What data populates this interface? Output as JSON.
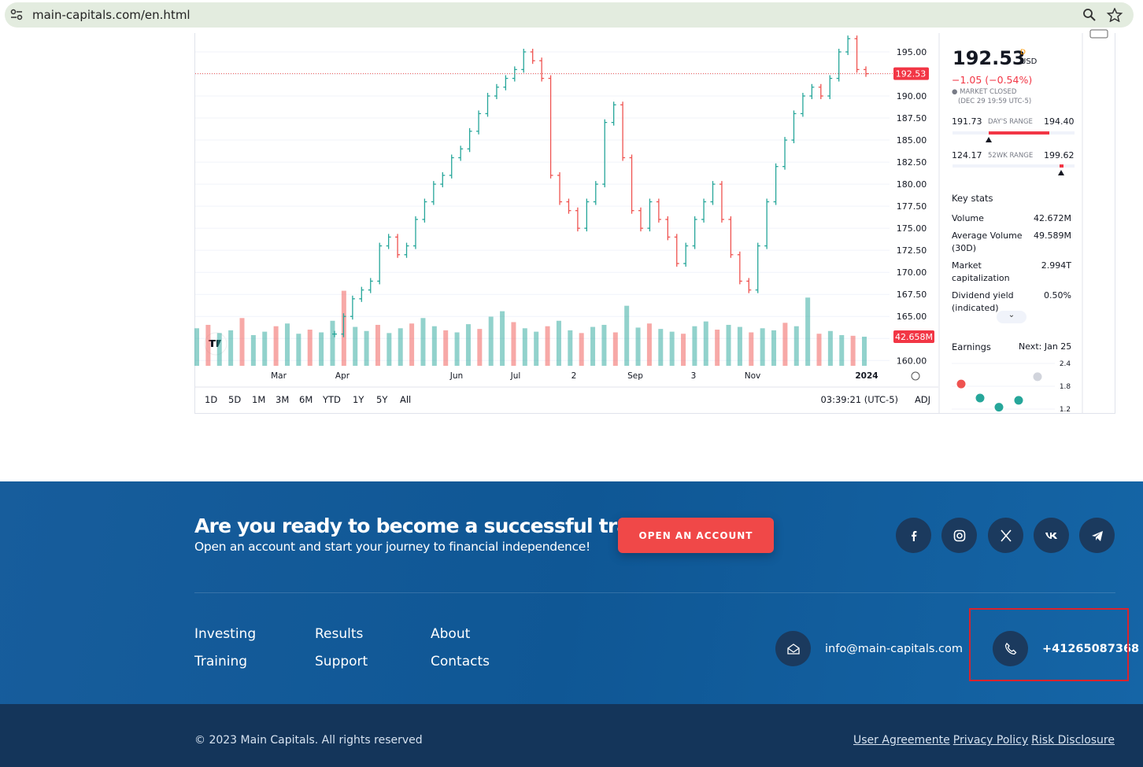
{
  "browser": {
    "url": "main-capitals.com/en.html"
  },
  "chart": {
    "type": "bar",
    "ylim": [
      159.4,
      197.05
    ],
    "yticks": [
      {
        "value": 160,
        "label": "160.00"
      },
      {
        "value": 162.5,
        "label": "162.50"
      },
      {
        "value": 165,
        "label": "165.00"
      },
      {
        "value": 167.5,
        "label": "167.50"
      },
      {
        "value": 170,
        "label": "170.00"
      },
      {
        "value": 172.5,
        "label": "172.50"
      },
      {
        "value": 175,
        "label": "175.00"
      },
      {
        "value": 177.5,
        "label": "177.50"
      },
      {
        "value": 180,
        "label": "180.00"
      },
      {
        "value": 182.5,
        "label": "182.50"
      },
      {
        "value": 185,
        "label": "185.00"
      },
      {
        "value": 187.5,
        "label": "187.50"
      },
      {
        "value": 190,
        "label": "190.00"
      },
      {
        "value": 192.5,
        "label": "192.50"
      },
      {
        "value": 195,
        "label": "195.00"
      }
    ],
    "x_labels": [
      "Mar",
      "Apr",
      "Jun",
      "Jul",
      "2",
      "Sep",
      "3",
      "Nov",
      "2024"
    ],
    "values": [
      163,
      165,
      167,
      168,
      169,
      173,
      174,
      172,
      173,
      176,
      178,
      180,
      181,
      183,
      184,
      186,
      188,
      190,
      191,
      192,
      193,
      195,
      194,
      192,
      181,
      178,
      177,
      175,
      178,
      180,
      187,
      189,
      183,
      177,
      175,
      178,
      176,
      174,
      171,
      173,
      176,
      178,
      180,
      176,
      172,
      169,
      168,
      173,
      178,
      182,
      185,
      188,
      190,
      191,
      190,
      192,
      195,
      196.5,
      193,
      192.53
    ],
    "volumes": [
      55,
      60,
      48,
      52,
      70,
      45,
      50,
      58,
      62,
      47,
      53,
      49,
      66,
      110,
      57,
      51,
      60,
      48,
      55,
      62,
      70,
      58,
      52,
      49,
      61,
      54,
      72,
      80,
      64,
      55,
      50,
      58,
      66,
      52,
      48,
      57,
      60,
      49,
      88,
      56,
      62,
      54,
      50,
      47,
      58,
      65,
      53,
      60,
      57,
      49,
      55,
      52,
      63,
      58,
      100,
      47,
      51,
      45,
      44,
      42.658
    ],
    "up_color": "#26a69a",
    "down_color": "#ef5350",
    "price_label": "192.53",
    "volume_label": "42.658M",
    "ranges": [
      "1D",
      "5D",
      "1M",
      "3M",
      "6M",
      "YTD",
      "1Y",
      "5Y",
      "All"
    ],
    "time": "03:39:21 (UTC-5)",
    "adj": "ADJ"
  },
  "quote": {
    "price": "192.53",
    "flag": "D",
    "currency": "USD",
    "change": "−1.05 (−0.54%)",
    "status": "MARKET CLOSED",
    "time": "(DEC 29 19:59 UTC-5)",
    "days_range": {
      "low": "191.73",
      "label": "DAY'S RANGE",
      "high": "194.40"
    },
    "week52_range": {
      "low": "124.17",
      "label": "52WK RANGE",
      "high": "199.62"
    },
    "key_stats": {
      "title": "Key stats",
      "rows": [
        [
          "Volume",
          "42.672M"
        ],
        [
          "Average Volume (30D)",
          "49.589M"
        ],
        [
          "Market capitalization",
          "2.994T"
        ],
        [
          "Dividend yield (indicated)",
          "0.50%"
        ]
      ]
    },
    "earnings": {
      "title": "Earnings",
      "next": "Next: Jan 25",
      "ylim": [
        1.2,
        2.4
      ],
      "yticks": [
        {
          "value": 2.4,
          "label": "2.4"
        },
        {
          "value": 1.8,
          "label": "1.8"
        },
        {
          "value": 1.2,
          "label": "1.2"
        }
      ],
      "values": [
        1.86,
        1.49,
        1.25,
        1.43,
        2.05
      ],
      "colors": [
        "#ef5350",
        "#26a69a",
        "#26a69a",
        "#26a69a",
        "#d1d4dc"
      ]
    }
  },
  "footer": {
    "cta_title": "Are you ready to become a successful trader?",
    "cta_subtitle": "Open an account and start your journey to financial independence!",
    "button": "OPEN AN ACCOUNT",
    "nav": [
      [
        "Investing",
        "Training"
      ],
      [
        "Results",
        "Support"
      ],
      [
        "About",
        "Contacts"
      ]
    ],
    "email": "info@main-capitals.com",
    "phone": "+41265087368",
    "copyright": "© 2023 Main Capitals. All rights reserved",
    "legal": [
      "User Agreemente",
      "Privacy Policy",
      "Risk Disclosure"
    ]
  }
}
